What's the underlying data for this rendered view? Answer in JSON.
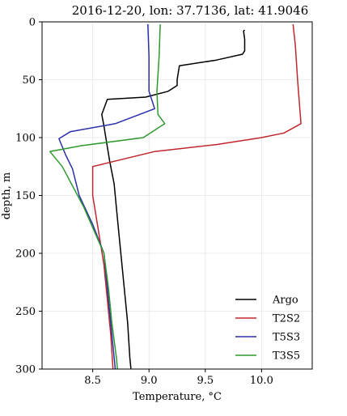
{
  "chart_data": {
    "type": "line",
    "title": "2016-12-20, lon: 37.7136,  lat: 41.9046",
    "xlabel": "Temperature, °C",
    "ylabel": "depth, m",
    "xlim": [
      8.05,
      10.45
    ],
    "ylim": [
      300,
      0
    ],
    "y_inverted": true,
    "grid": true,
    "legend_position": "lower-right",
    "x_ticks": [
      8.5,
      9.0,
      9.5,
      10.0
    ],
    "x_tick_labels": [
      "8.5",
      "9.0",
      "9.5",
      "10.0"
    ],
    "y_ticks": [
      0,
      50,
      100,
      150,
      200,
      250,
      300
    ],
    "y_tick_labels": [
      "0",
      "50",
      "100",
      "150",
      "200",
      "250",
      "300"
    ],
    "series": [
      {
        "name": "Argo",
        "color": "#000000",
        "points": [
          [
            9.85,
            7
          ],
          [
            9.84,
            8
          ],
          [
            9.85,
            15
          ],
          [
            9.85,
            25
          ],
          [
            9.83,
            28
          ],
          [
            9.6,
            33
          ],
          [
            9.27,
            38
          ],
          [
            9.25,
            50
          ],
          [
            9.25,
            55
          ],
          [
            9.17,
            60
          ],
          [
            8.97,
            65
          ],
          [
            8.63,
            67
          ],
          [
            8.58,
            80
          ],
          [
            8.6,
            90
          ],
          [
            8.65,
            120
          ],
          [
            8.69,
            140
          ],
          [
            8.72,
            170
          ],
          [
            8.75,
            200
          ],
          [
            8.78,
            230
          ],
          [
            8.81,
            260
          ],
          [
            8.83,
            290
          ],
          [
            8.84,
            300
          ]
        ]
      },
      {
        "name": "T2S2",
        "color": "#c0272d",
        "points": [
          [
            10.28,
            2
          ],
          [
            10.3,
            20
          ],
          [
            10.32,
            50
          ],
          [
            10.35,
            88
          ],
          [
            10.2,
            96
          ],
          [
            10.0,
            100
          ],
          [
            9.6,
            106
          ],
          [
            9.05,
            112
          ],
          [
            8.5,
            125
          ],
          [
            8.5,
            150
          ],
          [
            8.55,
            180
          ],
          [
            8.6,
            210
          ],
          [
            8.63,
            240
          ],
          [
            8.66,
            270
          ],
          [
            8.68,
            300
          ]
        ]
      },
      {
        "name": "T5S3",
        "color": "#2b2fa8",
        "points": [
          [
            8.99,
            2
          ],
          [
            9.0,
            30
          ],
          [
            9.0,
            60
          ],
          [
            9.05,
            75
          ],
          [
            8.7,
            88
          ],
          [
            8.3,
            95
          ],
          [
            8.2,
            101
          ],
          [
            8.26,
            115
          ],
          [
            8.32,
            127
          ],
          [
            8.38,
            150
          ],
          [
            8.5,
            175
          ],
          [
            8.6,
            200
          ],
          [
            8.63,
            230
          ],
          [
            8.66,
            260
          ],
          [
            8.69,
            290
          ],
          [
            8.7,
            300
          ]
        ]
      },
      {
        "name": "T3S5",
        "color": "#2e9a2e",
        "points": [
          [
            9.1,
            2
          ],
          [
            9.09,
            30
          ],
          [
            9.07,
            60
          ],
          [
            9.08,
            80
          ],
          [
            9.14,
            88
          ],
          [
            8.95,
            100
          ],
          [
            8.4,
            107
          ],
          [
            8.12,
            112
          ],
          [
            8.23,
            125
          ],
          [
            8.42,
            160
          ],
          [
            8.6,
            200
          ],
          [
            8.64,
            230
          ],
          [
            8.67,
            260
          ],
          [
            8.71,
            290
          ],
          [
            8.72,
            300
          ]
        ]
      }
    ]
  }
}
